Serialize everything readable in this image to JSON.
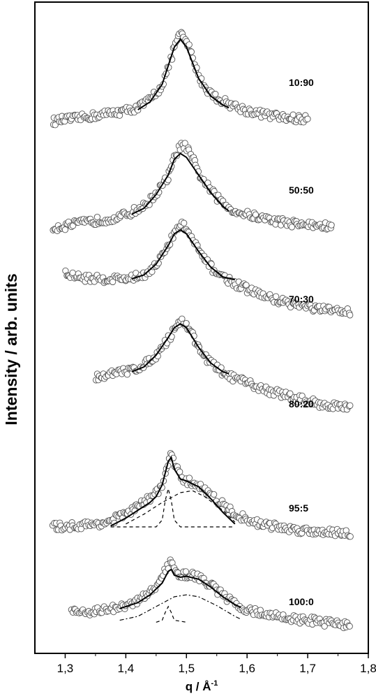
{
  "chart_data": {
    "type": "scatter",
    "title": "",
    "xlabel": "q / Å",
    "xlabel_superscript": "-1",
    "ylabel": "Intensity / arb. units",
    "xlim": [
      1.25,
      1.8
    ],
    "x_ticks": [
      "1,3",
      "1,4",
      "1,5",
      "1,6",
      "1,7",
      "1,8"
    ],
    "x_tick_values": [
      1.3,
      1.4,
      1.5,
      1.6,
      1.7,
      1.8
    ],
    "y_ticks_shown": false,
    "grid": false,
    "legend": "none",
    "marker": "open-circle",
    "series": [
      {
        "name": "10:90",
        "q_range": [
          1.28,
          1.7
        ],
        "scatter": [
          [
            1.28,
            0.08
          ],
          [
            1.3,
            0.1
          ],
          [
            1.32,
            0.11
          ],
          [
            1.34,
            0.13
          ],
          [
            1.36,
            0.15
          ],
          [
            1.38,
            0.17
          ],
          [
            1.4,
            0.19
          ],
          [
            1.42,
            0.22
          ],
          [
            1.44,
            0.3
          ],
          [
            1.46,
            0.45
          ],
          [
            1.47,
            0.62
          ],
          [
            1.48,
            0.85
          ],
          [
            1.49,
            0.97
          ],
          [
            1.5,
            0.9
          ],
          [
            1.51,
            0.74
          ],
          [
            1.52,
            0.55
          ],
          [
            1.53,
            0.43
          ],
          [
            1.55,
            0.32
          ],
          [
            1.57,
            0.26
          ],
          [
            1.6,
            0.19
          ],
          [
            1.63,
            0.15
          ],
          [
            1.66,
            0.12
          ],
          [
            1.7,
            0.1
          ]
        ],
        "fit": [
          [
            1.42,
            0.2
          ],
          [
            1.44,
            0.28
          ],
          [
            1.46,
            0.46
          ],
          [
            1.48,
            0.84
          ],
          [
            1.49,
            0.92
          ],
          [
            1.5,
            0.84
          ],
          [
            1.52,
            0.52
          ],
          [
            1.54,
            0.34
          ],
          [
            1.56,
            0.25
          ],
          [
            1.57,
            0.22
          ]
        ]
      },
      {
        "name": "50:50",
        "q_range": [
          1.28,
          1.74
        ],
        "scatter": [
          [
            1.28,
            0.1
          ],
          [
            1.3,
            0.12
          ],
          [
            1.33,
            0.15
          ],
          [
            1.36,
            0.18
          ],
          [
            1.39,
            0.21
          ],
          [
            1.41,
            0.26
          ],
          [
            1.43,
            0.32
          ],
          [
            1.45,
            0.45
          ],
          [
            1.47,
            0.62
          ],
          [
            1.48,
            0.8
          ],
          [
            1.49,
            0.95
          ],
          [
            1.5,
            0.92
          ],
          [
            1.51,
            0.8
          ],
          [
            1.52,
            0.66
          ],
          [
            1.54,
            0.48
          ],
          [
            1.56,
            0.35
          ],
          [
            1.58,
            0.27
          ],
          [
            1.61,
            0.22
          ],
          [
            1.64,
            0.18
          ],
          [
            1.67,
            0.15
          ],
          [
            1.7,
            0.13
          ],
          [
            1.74,
            0.11
          ]
        ],
        "fit": [
          [
            1.41,
            0.24
          ],
          [
            1.43,
            0.3
          ],
          [
            1.45,
            0.44
          ],
          [
            1.47,
            0.64
          ],
          [
            1.48,
            0.8
          ],
          [
            1.49,
            0.86
          ],
          [
            1.5,
            0.82
          ],
          [
            1.52,
            0.64
          ],
          [
            1.54,
            0.46
          ],
          [
            1.56,
            0.32
          ],
          [
            1.57,
            0.27
          ]
        ]
      },
      {
        "name": "70:30",
        "q_range": [
          1.3,
          1.77
        ],
        "scatter": [
          [
            1.3,
            0.45
          ],
          [
            1.32,
            0.42
          ],
          [
            1.35,
            0.4
          ],
          [
            1.38,
            0.4
          ],
          [
            1.41,
            0.41
          ],
          [
            1.43,
            0.44
          ],
          [
            1.45,
            0.55
          ],
          [
            1.47,
            0.72
          ],
          [
            1.48,
            0.87
          ],
          [
            1.49,
            0.96
          ],
          [
            1.5,
            0.92
          ],
          [
            1.51,
            0.8
          ],
          [
            1.52,
            0.68
          ],
          [
            1.54,
            0.52
          ],
          [
            1.56,
            0.42
          ],
          [
            1.58,
            0.35
          ],
          [
            1.61,
            0.27
          ],
          [
            1.64,
            0.2
          ],
          [
            1.67,
            0.15
          ],
          [
            1.7,
            0.11
          ],
          [
            1.73,
            0.08
          ],
          [
            1.77,
            0.06
          ]
        ],
        "fit": [
          [
            1.41,
            0.4
          ],
          [
            1.43,
            0.44
          ],
          [
            1.45,
            0.55
          ],
          [
            1.47,
            0.74
          ],
          [
            1.48,
            0.86
          ],
          [
            1.49,
            0.9
          ],
          [
            1.5,
            0.86
          ],
          [
            1.52,
            0.68
          ],
          [
            1.54,
            0.52
          ],
          [
            1.56,
            0.42
          ],
          [
            1.58,
            0.39
          ]
        ]
      },
      {
        "name": "80:20",
        "q_range": [
          1.35,
          1.77
        ],
        "scatter": [
          [
            1.35,
            0.4
          ],
          [
            1.37,
            0.42
          ],
          [
            1.39,
            0.44
          ],
          [
            1.41,
            0.47
          ],
          [
            1.43,
            0.52
          ],
          [
            1.45,
            0.62
          ],
          [
            1.47,
            0.78
          ],
          [
            1.48,
            0.9
          ],
          [
            1.49,
            0.97
          ],
          [
            1.5,
            0.93
          ],
          [
            1.51,
            0.83
          ],
          [
            1.52,
            0.7
          ],
          [
            1.54,
            0.54
          ],
          [
            1.56,
            0.44
          ],
          [
            1.58,
            0.38
          ],
          [
            1.61,
            0.31
          ],
          [
            1.64,
            0.25
          ],
          [
            1.67,
            0.2
          ],
          [
            1.7,
            0.15
          ],
          [
            1.73,
            0.11
          ],
          [
            1.77,
            0.08
          ]
        ],
        "fit": [
          [
            1.41,
            0.45
          ],
          [
            1.43,
            0.5
          ],
          [
            1.45,
            0.62
          ],
          [
            1.47,
            0.8
          ],
          [
            1.48,
            0.9
          ],
          [
            1.49,
            0.94
          ],
          [
            1.5,
            0.9
          ],
          [
            1.52,
            0.7
          ],
          [
            1.54,
            0.54
          ],
          [
            1.56,
            0.45
          ],
          [
            1.57,
            0.43
          ]
        ]
      },
      {
        "name": "95:5",
        "q_range": [
          1.28,
          1.77
        ],
        "scatter": [
          [
            1.28,
            0.15
          ],
          [
            1.31,
            0.16
          ],
          [
            1.34,
            0.17
          ],
          [
            1.37,
            0.2
          ],
          [
            1.4,
            0.28
          ],
          [
            1.42,
            0.36
          ],
          [
            1.44,
            0.44
          ],
          [
            1.45,
            0.5
          ],
          [
            1.46,
            0.58
          ],
          [
            1.47,
            0.8
          ],
          [
            1.475,
            0.92
          ],
          [
            1.48,
            0.78
          ],
          [
            1.49,
            0.66
          ],
          [
            1.5,
            0.62
          ],
          [
            1.52,
            0.58
          ],
          [
            1.54,
            0.48
          ],
          [
            1.56,
            0.38
          ],
          [
            1.58,
            0.28
          ],
          [
            1.61,
            0.2
          ],
          [
            1.64,
            0.16
          ],
          [
            1.67,
            0.13
          ],
          [
            1.7,
            0.11
          ],
          [
            1.74,
            0.1
          ],
          [
            1.77,
            0.09
          ]
        ],
        "fit": [
          [
            1.375,
            0.16
          ],
          [
            1.4,
            0.24
          ],
          [
            1.42,
            0.32
          ],
          [
            1.44,
            0.4
          ],
          [
            1.45,
            0.46
          ],
          [
            1.46,
            0.58
          ],
          [
            1.47,
            0.82
          ],
          [
            1.475,
            0.86
          ],
          [
            1.48,
            0.74
          ],
          [
            1.49,
            0.64
          ],
          [
            1.5,
            0.62
          ],
          [
            1.52,
            0.56
          ],
          [
            1.54,
            0.44
          ],
          [
            1.56,
            0.3
          ],
          [
            1.58,
            0.18
          ]
        ],
        "component_narrow": [
          [
            1.375,
            0.15
          ],
          [
            1.45,
            0.15
          ],
          [
            1.46,
            0.22
          ],
          [
            1.465,
            0.42
          ],
          [
            1.47,
            0.54
          ],
          [
            1.475,
            0.42
          ],
          [
            1.48,
            0.22
          ],
          [
            1.49,
            0.15
          ],
          [
            1.58,
            0.15
          ]
        ],
        "component_broad": [
          [
            1.4,
            0.18
          ],
          [
            1.43,
            0.28
          ],
          [
            1.46,
            0.4
          ],
          [
            1.49,
            0.5
          ],
          [
            1.51,
            0.52
          ],
          [
            1.53,
            0.46
          ],
          [
            1.56,
            0.32
          ],
          [
            1.58,
            0.2
          ]
        ]
      },
      {
        "name": "100:0",
        "q_range": [
          1.31,
          1.77
        ],
        "scatter": [
          [
            1.31,
            0.24
          ],
          [
            1.34,
            0.25
          ],
          [
            1.37,
            0.27
          ],
          [
            1.4,
            0.3
          ],
          [
            1.42,
            0.36
          ],
          [
            1.44,
            0.44
          ],
          [
            1.45,
            0.52
          ],
          [
            1.46,
            0.6
          ],
          [
            1.47,
            0.72
          ],
          [
            1.475,
            0.76
          ],
          [
            1.48,
            0.66
          ],
          [
            1.49,
            0.62
          ],
          [
            1.5,
            0.63
          ],
          [
            1.52,
            0.6
          ],
          [
            1.54,
            0.52
          ],
          [
            1.56,
            0.42
          ],
          [
            1.58,
            0.32
          ],
          [
            1.61,
            0.25
          ],
          [
            1.64,
            0.21
          ],
          [
            1.67,
            0.18
          ],
          [
            1.7,
            0.16
          ],
          [
            1.74,
            0.13
          ],
          [
            1.77,
            0.11
          ]
        ],
        "fit": [
          [
            1.39,
            0.28
          ],
          [
            1.42,
            0.34
          ],
          [
            1.44,
            0.42
          ],
          [
            1.46,
            0.54
          ],
          [
            1.47,
            0.66
          ],
          [
            1.475,
            0.68
          ],
          [
            1.48,
            0.62
          ],
          [
            1.49,
            0.6
          ],
          [
            1.5,
            0.61
          ],
          [
            1.52,
            0.58
          ],
          [
            1.54,
            0.5
          ],
          [
            1.56,
            0.4
          ],
          [
            1.58,
            0.32
          ],
          [
            1.59,
            0.29
          ]
        ],
        "component_narrow": [
          [
            1.45,
            0.14
          ],
          [
            1.46,
            0.16
          ],
          [
            1.465,
            0.24
          ],
          [
            1.47,
            0.3
          ],
          [
            1.475,
            0.24
          ],
          [
            1.48,
            0.16
          ],
          [
            1.5,
            0.14
          ]
        ],
        "component_broad": [
          [
            1.39,
            0.16
          ],
          [
            1.42,
            0.2
          ],
          [
            1.45,
            0.3
          ],
          [
            1.48,
            0.4
          ],
          [
            1.5,
            0.42
          ],
          [
            1.52,
            0.4
          ],
          [
            1.55,
            0.31
          ],
          [
            1.58,
            0.2
          ],
          [
            1.59,
            0.17
          ]
        ]
      }
    ]
  }
}
